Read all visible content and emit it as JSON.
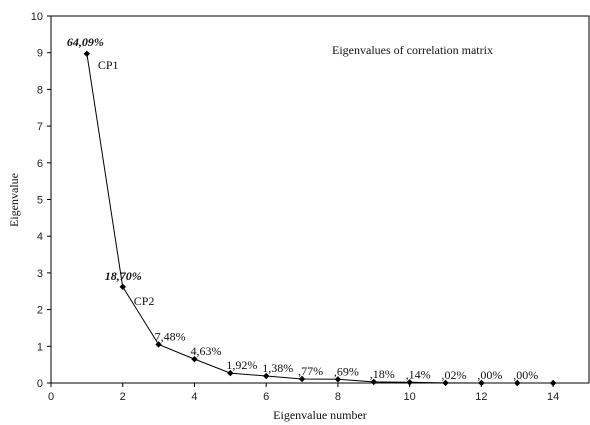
{
  "chart_data": {
    "type": "line",
    "title": "Eigenvalues of correlation matrix",
    "xlabel": "Eigenvalue number",
    "ylabel": "Eigenvalue",
    "xlim": [
      0,
      15
    ],
    "ylim": [
      0,
      10
    ],
    "xticks": [
      "0",
      "2",
      "4",
      "6",
      "8",
      "10",
      "12",
      "14"
    ],
    "yticks": [
      "0",
      "1",
      "2",
      "3",
      "4",
      "5",
      "6",
      "7",
      "8",
      "9",
      "10"
    ],
    "grid": false,
    "series": [
      {
        "x": [
          1,
          2,
          3,
          4,
          5,
          6,
          7,
          8,
          9,
          10,
          11,
          12,
          13,
          14
        ],
        "values": [
          8.97,
          2.62,
          1.05,
          0.65,
          0.27,
          0.19,
          0.11,
          0.1,
          0.03,
          0.02,
          0.003,
          0.0,
          0.0,
          0.0
        ]
      }
    ],
    "point_labels": [
      {
        "text": "64,09%",
        "bold": true
      },
      {
        "text": "18,70%",
        "bold": true
      },
      {
        "text": "7,48%",
        "bold": false
      },
      {
        "text": "4,63%",
        "bold": false
      },
      {
        "text": "1,92%",
        "bold": false
      },
      {
        "text": "1,38%",
        "bold": false
      },
      {
        "text": ",77%",
        "bold": false
      },
      {
        "text": ",69%",
        "bold": false
      },
      {
        "text": ",18%",
        "bold": false
      },
      {
        "text": ",14%",
        "bold": false
      },
      {
        "text": ",02%",
        "bold": false
      },
      {
        "text": ",00%",
        "bold": false
      },
      {
        "text": ",00%",
        "bold": false
      }
    ],
    "component_labels": [
      {
        "text": "CP1",
        "point": 0
      },
      {
        "text": "CP2",
        "point": 1
      }
    ]
  }
}
